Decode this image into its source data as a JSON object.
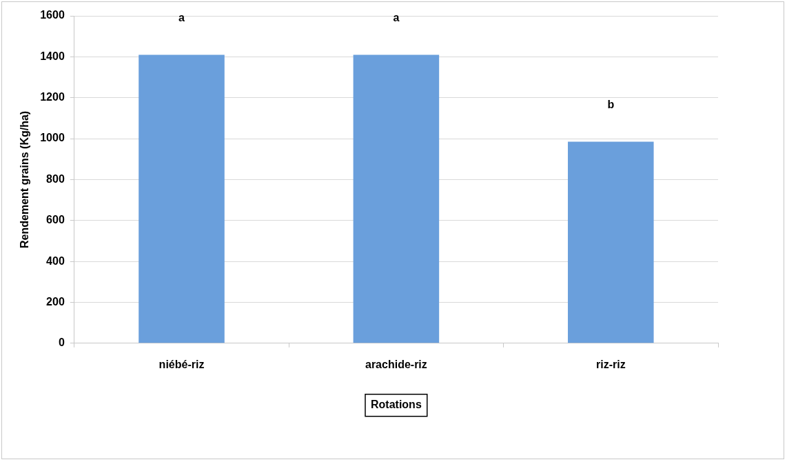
{
  "chart_data": {
    "type": "bar",
    "xlabel": "Rotations",
    "ylabel": "Rendement grains (Kg/ha)",
    "categories": [
      "niébé-riz",
      "arachide-riz",
      "riz-riz"
    ],
    "values": [
      1410,
      1410,
      985
    ],
    "color": "#6a9fdc",
    "ylim": [
      0,
      1600
    ],
    "yticks": [
      0,
      200,
      400,
      600,
      800,
      1000,
      1200,
      1400,
      1600
    ],
    "grid": "y",
    "annotations": [
      {
        "text": "a",
        "x": "niébé-riz",
        "y": 1410
      },
      {
        "text": "a",
        "x": "arachide-riz",
        "y": 1410
      },
      {
        "text": "b",
        "x": "riz-riz",
        "y": 985
      }
    ]
  }
}
